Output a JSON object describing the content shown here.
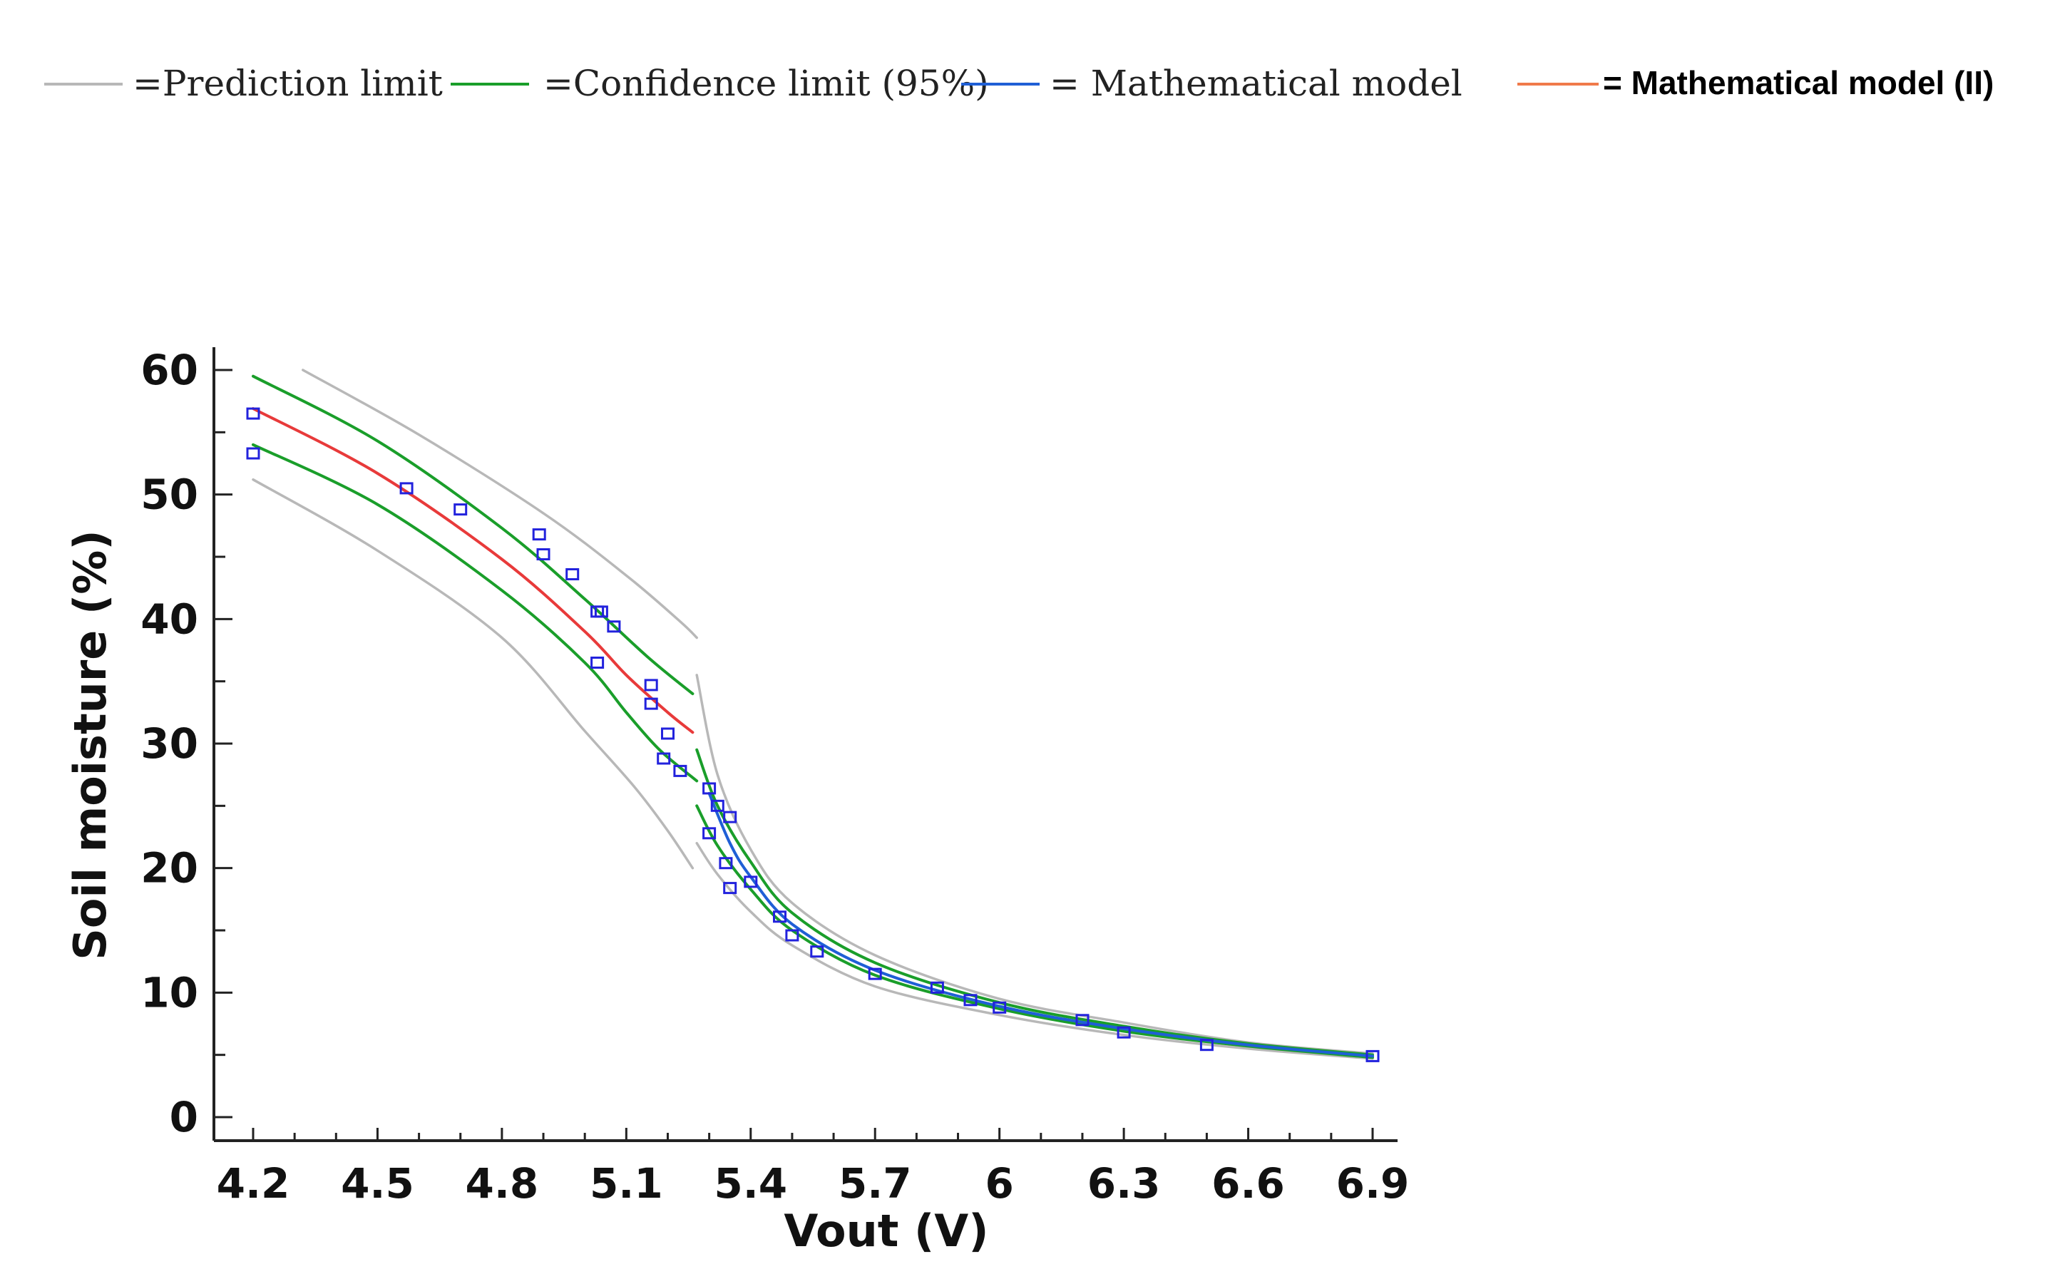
{
  "chart_data": {
    "type": "scatter",
    "title": "",
    "xlabel": "Vout (V)",
    "ylabel": "Soil moisture (%)",
    "xlim": [
      4.2,
      6.9
    ],
    "ylim": [
      0,
      60
    ],
    "x_ticks": [
      "4.2",
      "4.5",
      "4.8",
      "5.1",
      "5.4",
      "5.7",
      "6",
      "6.3",
      "6.6",
      "6.9"
    ],
    "y_ticks": [
      "0",
      "10",
      "20",
      "30",
      "40",
      "50",
      "60"
    ],
    "x_tick_values": [
      4.2,
      4.5,
      4.8,
      5.1,
      5.4,
      5.7,
      6.0,
      6.3,
      6.6,
      6.9
    ],
    "y_tick_values": [
      0,
      10,
      20,
      30,
      40,
      50,
      60
    ],
    "legend_position": "top",
    "colors": {
      "prediction": "#b8b8b8",
      "confidence": "#1a9e2a",
      "model": "#1f5fd6",
      "model2": "#f07a4a",
      "model2_curve": "#e83a3a",
      "points": "#2222dd",
      "axis": "#222222"
    },
    "legend": [
      {
        "label": "=Prediction limit",
        "color_key": "prediction"
      },
      {
        "label": "=Confidence limit (95%)",
        "color_key": "confidence"
      },
      {
        "label": "= Mathematical model",
        "color_key": "model"
      },
      {
        "label": "= Mathematical model (II)",
        "color_key": "model2"
      }
    ],
    "observations": {
      "x": [
        4.2,
        4.2,
        4.57,
        4.7,
        4.89,
        4.9,
        4.97,
        5.03,
        5.04,
        5.03,
        5.07,
        5.16,
        5.16,
        5.2,
        5.19,
        5.23,
        5.3,
        5.3,
        5.32,
        5.35,
        5.34,
        5.35,
        5.4,
        5.47,
        5.5,
        5.56,
        5.7,
        5.85,
        5.93,
        6.0,
        6.2,
        6.3,
        6.5,
        6.9
      ],
      "y": [
        56.5,
        53.3,
        50.5,
        48.8,
        46.8,
        45.2,
        43.6,
        40.6,
        40.6,
        36.5,
        39.4,
        34.7,
        33.2,
        30.8,
        28.8,
        27.8,
        26.4,
        22.8,
        25.0,
        24.1,
        20.4,
        18.4,
        18.9,
        16.1,
        14.6,
        13.3,
        11.5,
        10.4,
        9.4,
        8.8,
        7.8,
        6.8,
        5.8,
        4.9
      ]
    },
    "series": [
      {
        "name": "Prediction limit (upper, segment I)",
        "color_key": "prediction",
        "x": [
          4.32,
          4.6,
          4.9,
          5.1,
          5.23,
          5.27
        ],
        "y": [
          60.0,
          54.8,
          48.5,
          43.5,
          39.8,
          38.5
        ]
      },
      {
        "name": "Prediction limit (lower, segment I)",
        "color_key": "prediction",
        "x": [
          4.2,
          4.5,
          4.8,
          5.0,
          5.12,
          5.2,
          5.26
        ],
        "y": [
          51.2,
          45.5,
          38.5,
          31.0,
          26.5,
          23.0,
          20.0
        ]
      },
      {
        "name": "Confidence limit (upper, segment I)",
        "color_key": "confidence",
        "x": [
          4.2,
          4.5,
          4.8,
          5.0,
          5.15,
          5.26
        ],
        "y": [
          59.5,
          54.3,
          47.3,
          41.6,
          37.0,
          34.0
        ]
      },
      {
        "name": "Confidence limit (lower, segment I)",
        "color_key": "confidence",
        "x": [
          4.2,
          4.5,
          4.8,
          5.0,
          5.1,
          5.18,
          5.27
        ],
        "y": [
          54.0,
          49.2,
          42.3,
          36.5,
          32.5,
          29.5,
          27.0
        ]
      },
      {
        "name": "Mathematical model (II)",
        "color_key": "model2_curve",
        "x": [
          4.2,
          4.5,
          4.8,
          5.0,
          5.1,
          5.2,
          5.26
        ],
        "y": [
          56.9,
          51.7,
          44.8,
          39.0,
          35.5,
          32.5,
          30.9
        ]
      },
      {
        "name": "Prediction limit (upper, segment II)",
        "color_key": "prediction",
        "x": [
          5.27,
          5.32,
          5.4,
          5.5,
          5.7,
          6.0,
          6.3,
          6.6,
          6.9
        ],
        "y": [
          35.5,
          27.5,
          21.5,
          17.2,
          13.0,
          9.5,
          7.6,
          6.0,
          5.1
        ]
      },
      {
        "name": "Prediction limit (lower, segment II)",
        "color_key": "prediction",
        "x": [
          5.27,
          5.32,
          5.4,
          5.5,
          5.7,
          6.0,
          6.3,
          6.6,
          6.9
        ],
        "y": [
          22.0,
          19.5,
          16.5,
          13.8,
          10.5,
          8.2,
          6.6,
          5.5,
          4.7
        ]
      },
      {
        "name": "Confidence limit (upper, segment II)",
        "color_key": "confidence",
        "x": [
          5.27,
          5.32,
          5.4,
          5.5,
          5.7,
          6.0,
          6.3,
          6.6,
          6.9
        ],
        "y": [
          29.5,
          25.0,
          20.5,
          16.4,
          12.4,
          9.2,
          7.3,
          5.9,
          5.0
        ]
      },
      {
        "name": "Confidence limit (lower, segment II)",
        "color_key": "confidence",
        "x": [
          5.27,
          5.32,
          5.4,
          5.5,
          5.7,
          6.0,
          6.3,
          6.6,
          6.9
        ],
        "y": [
          25.0,
          21.8,
          18.3,
          15.0,
          11.4,
          8.7,
          6.9,
          5.7,
          4.8
        ]
      },
      {
        "name": "Mathematical model",
        "color_key": "model",
        "x": [
          5.3,
          5.35,
          5.4,
          5.5,
          5.7,
          6.0,
          6.3,
          6.6,
          6.9
        ],
        "y": [
          26.0,
          22.0,
          19.3,
          15.5,
          11.8,
          8.9,
          7.1,
          5.8,
          4.9
        ]
      }
    ]
  }
}
